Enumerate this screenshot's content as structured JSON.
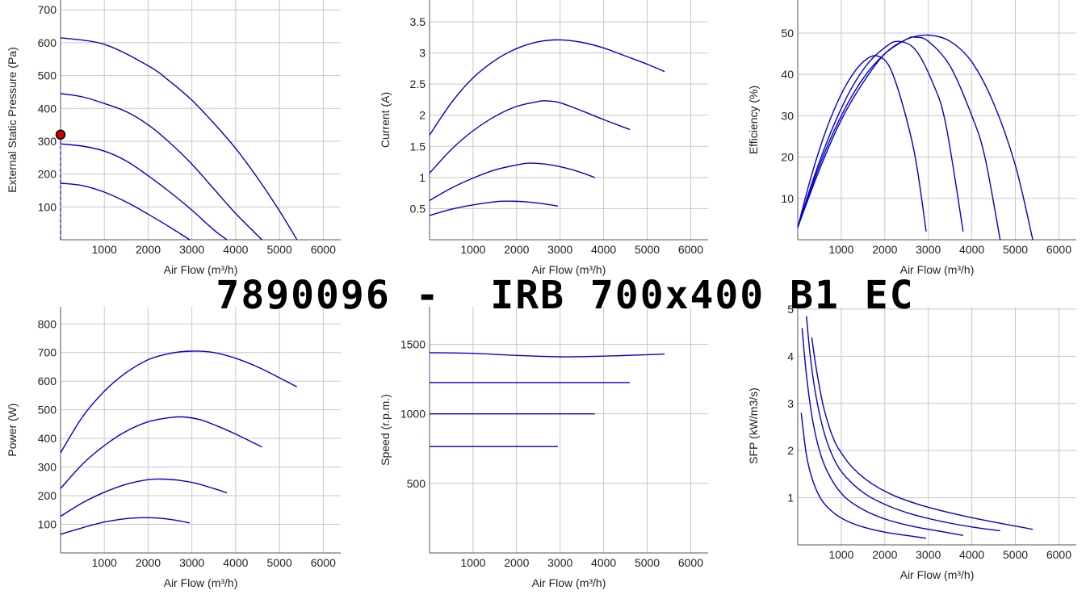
{
  "title": "7890096 -  IRB 700x400 B1 EC",
  "colors": {
    "curve": "#0000cc",
    "marker": "#cc0000",
    "grid": "#c8c8c8"
  },
  "chart_data": [
    {
      "type": "line",
      "id": "pressure",
      "xlabel": "Air Flow (m³/h)",
      "ylabel": "External Static Pressure (Pa)",
      "xlim": [
        0,
        6400
      ],
      "ylim": [
        0,
        730
      ],
      "xticks": [
        1000,
        2000,
        3000,
        4000,
        5000,
        6000
      ],
      "yticks": [
        100,
        200,
        300,
        400,
        500,
        600,
        700
      ],
      "grid": true,
      "series": [
        {
          "x": [
            0,
            1000,
            2000,
            2500,
            3000,
            3500,
            4000,
            4500,
            5000,
            5400
          ],
          "y": [
            615,
            595,
            530,
            482,
            425,
            355,
            278,
            188,
            88,
            0
          ]
        },
        {
          "x": [
            0,
            500,
            1000,
            1500,
            2000,
            2500,
            3000,
            3500,
            4000,
            4600
          ],
          "y": [
            445,
            435,
            415,
            390,
            350,
            295,
            230,
            155,
            80,
            0
          ]
        },
        {
          "x": [
            0,
            500,
            1000,
            1500,
            2000,
            2500,
            3000,
            3500,
            3800
          ],
          "y": [
            292,
            285,
            270,
            240,
            195,
            145,
            90,
            30,
            0
          ]
        },
        {
          "x": [
            0,
            500,
            1000,
            1500,
            2000,
            2500,
            2950
          ],
          "y": [
            172,
            165,
            145,
            115,
            78,
            38,
            0
          ]
        }
      ],
      "marker": {
        "x": 0,
        "y": 320
      }
    },
    {
      "type": "line",
      "id": "current",
      "xlabel": "Air Flow (m³/h)",
      "ylabel": "Current (A)",
      "xlim": [
        0,
        6400
      ],
      "ylim": [
        0,
        3.85
      ],
      "xticks": [
        1000,
        2000,
        3000,
        4000,
        5000,
        6000
      ],
      "yticks": [
        0.5,
        1,
        1.5,
        2,
        2.5,
        3,
        3.5
      ],
      "ytick_labels": [
        "0.5",
        "1",
        "1.5",
        "2",
        "2.5",
        "3",
        "3.5"
      ],
      "grid": true,
      "series": [
        {
          "x": [
            0,
            500,
            1000,
            1500,
            2000,
            2500,
            3000,
            3500,
            4000,
            4500,
            5000,
            5400
          ],
          "y": [
            1.68,
            2.2,
            2.6,
            2.88,
            3.07,
            3.18,
            3.21,
            3.17,
            3.08,
            2.95,
            2.82,
            2.7
          ]
        },
        {
          "x": [
            0,
            500,
            1000,
            1500,
            2000,
            2500,
            2700,
            3000,
            3500,
            4000,
            4600
          ],
          "y": [
            1.07,
            1.45,
            1.75,
            1.98,
            2.14,
            2.22,
            2.23,
            2.2,
            2.07,
            1.93,
            1.77
          ]
        },
        {
          "x": [
            0,
            500,
            1000,
            1500,
            2000,
            2300,
            2800,
            3300,
            3800
          ],
          "y": [
            0.63,
            0.83,
            0.99,
            1.12,
            1.2,
            1.23,
            1.2,
            1.12,
            1.0
          ]
        },
        {
          "x": [
            0,
            500,
            1000,
            1500,
            1800,
            2200,
            2600,
            2950
          ],
          "y": [
            0.39,
            0.49,
            0.56,
            0.61,
            0.62,
            0.61,
            0.58,
            0.54
          ]
        }
      ]
    },
    {
      "type": "line",
      "id": "efficiency",
      "xlabel": "Air Flow (m³/h)",
      "ylabel": "Efficiency (%)",
      "xlim": [
        0,
        6400
      ],
      "ylim": [
        0,
        58
      ],
      "xticks": [
        1000,
        2000,
        3000,
        4000,
        5000,
        6000
      ],
      "yticks": [
        10,
        20,
        30,
        40,
        50
      ],
      "grid": true,
      "series": [
        {
          "x": [
            0,
            500,
            1000,
            1500,
            2000,
            2500,
            3000,
            3500,
            4000,
            4500,
            5000,
            5400
          ],
          "y": [
            3,
            17,
            29,
            38,
            45,
            48.5,
            49.5,
            48,
            43,
            33,
            18,
            0
          ]
        },
        {
          "x": [
            0,
            500,
            1000,
            1500,
            2000,
            2500,
            2700,
            3000,
            3500,
            4000,
            4300,
            4650
          ],
          "y": [
            3,
            18,
            30,
            39,
            45,
            48.5,
            49,
            48,
            42,
            30,
            20,
            0
          ]
        },
        {
          "x": [
            0,
            400,
            800,
            1200,
            1600,
            2000,
            2300,
            2700,
            3100,
            3400,
            3800
          ],
          "y": [
            3,
            16,
            27,
            36,
            42.5,
            46.5,
            48,
            46,
            38,
            28,
            2
          ]
        },
        {
          "x": [
            0,
            300,
            600,
            900,
            1200,
            1500,
            1800,
            2100,
            2400,
            2700,
            2950
          ],
          "y": [
            3,
            15,
            25,
            33,
            39,
            43,
            44.5,
            42,
            33,
            20,
            2
          ]
        }
      ]
    },
    {
      "type": "line",
      "id": "power",
      "xlabel": "Air Flow (m³/h)",
      "ylabel": "Power (W)",
      "xlim": [
        0,
        6400
      ],
      "ylim": [
        0,
        860
      ],
      "xticks": [
        1000,
        2000,
        3000,
        4000,
        5000,
        6000
      ],
      "yticks": [
        100,
        200,
        300,
        400,
        500,
        600,
        700,
        800
      ],
      "grid": true,
      "series": [
        {
          "x": [
            0,
            500,
            1000,
            1500,
            2000,
            2500,
            3000,
            3500,
            4000,
            4500,
            5000,
            5400
          ],
          "y": [
            350,
            475,
            565,
            630,
            675,
            697,
            705,
            700,
            680,
            650,
            612,
            580
          ]
        },
        {
          "x": [
            0,
            500,
            1000,
            1500,
            2000,
            2500,
            2800,
            3200,
            3600,
            4000,
            4600
          ],
          "y": [
            225,
            310,
            375,
            425,
            458,
            473,
            475,
            465,
            442,
            415,
            370
          ]
        },
        {
          "x": [
            0,
            500,
            1000,
            1500,
            2000,
            2300,
            2700,
            3100,
            3500,
            3800
          ],
          "y": [
            128,
            175,
            212,
            240,
            256,
            258,
            254,
            243,
            225,
            210
          ]
        },
        {
          "x": [
            0,
            500,
            1000,
            1500,
            1800,
            2200,
            2600,
            2950
          ],
          "y": [
            65,
            88,
            108,
            120,
            123,
            122,
            115,
            105
          ]
        }
      ]
    },
    {
      "type": "line",
      "id": "speed",
      "xlabel": "Air Flow (m³/h)",
      "ylabel": "Speed (r.p.m.)",
      "xlim": [
        0,
        6400
      ],
      "ylim": [
        0,
        1770
      ],
      "xticks": [
        1000,
        2000,
        3000,
        4000,
        5000,
        6000
      ],
      "yticks": [
        500,
        1000,
        1500
      ],
      "grid": true,
      "series": [
        {
          "x": [
            0,
            1000,
            2000,
            3000,
            4000,
            5000,
            5400
          ],
          "y": [
            1440,
            1435,
            1420,
            1410,
            1415,
            1425,
            1430
          ]
        },
        {
          "x": [
            0,
            1000,
            2000,
            3000,
            4000,
            4600
          ],
          "y": [
            1225,
            1225,
            1225,
            1225,
            1225,
            1225
          ]
        },
        {
          "x": [
            0,
            1000,
            2000,
            3000,
            3800
          ],
          "y": [
            1000,
            1000,
            1000,
            1000,
            1000
          ]
        },
        {
          "x": [
            0,
            1000,
            2000,
            2950
          ],
          "y": [
            765,
            765,
            765,
            765
          ]
        }
      ]
    },
    {
      "type": "line",
      "id": "sfp",
      "xlabel": "Air Flow (m³/h)",
      "ylabel": "SFP (kW/m3/s)",
      "xlim": [
        0,
        6400
      ],
      "ylim": [
        0,
        5.05
      ],
      "xticks": [
        1000,
        2000,
        3000,
        4000,
        5000,
        6000
      ],
      "yticks": [
        1,
        2,
        3,
        4,
        5
      ],
      "grid": true,
      "series": [
        {
          "x": [
            320,
            450,
            600,
            800,
            1000,
            1300,
            1700,
            2200,
            2800,
            3500,
            4300,
            5400
          ],
          "y": [
            4.4,
            3.6,
            2.9,
            2.3,
            1.95,
            1.6,
            1.3,
            1.05,
            0.85,
            0.68,
            0.52,
            0.33
          ]
        },
        {
          "x": [
            200,
            300,
            450,
            650,
            900,
            1200,
            1600,
            2100,
            2700,
            3400,
            4000,
            4650
          ],
          "y": [
            4.85,
            3.9,
            3.0,
            2.25,
            1.7,
            1.35,
            1.05,
            0.82,
            0.63,
            0.48,
            0.38,
            0.3
          ]
        },
        {
          "x": [
            100,
            200,
            350,
            550,
            800,
            1100,
            1500,
            2000,
            2600,
            3200,
            3800
          ],
          "y": [
            4.6,
            3.6,
            2.6,
            1.85,
            1.35,
            1.0,
            0.75,
            0.55,
            0.4,
            0.3,
            0.2
          ]
        },
        {
          "x": [
            80,
            200,
            350,
            550,
            800,
            1100,
            1500,
            2000,
            2500,
            2950
          ],
          "y": [
            2.8,
            1.9,
            1.35,
            0.95,
            0.7,
            0.52,
            0.38,
            0.27,
            0.2,
            0.14
          ]
        }
      ]
    }
  ]
}
